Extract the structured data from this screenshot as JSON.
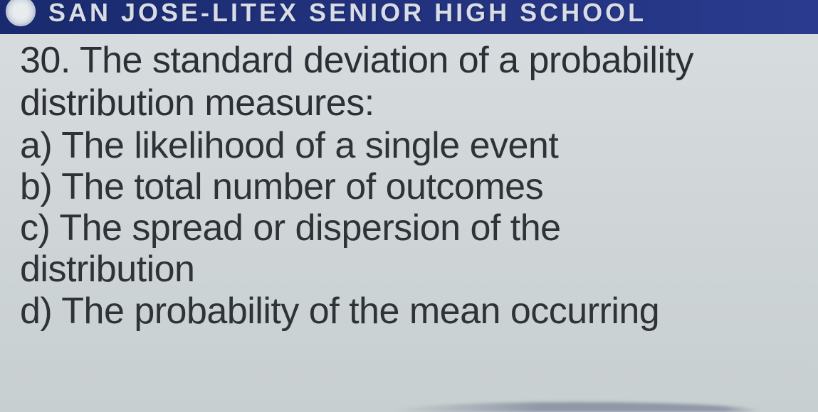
{
  "header": {
    "school_name_partial": "SAN JOSE-LITEX SENIOR HIGH SCHOOL",
    "logo_bg": "#e8ecef",
    "bar_color": "#1a2a6e",
    "text_color": "#d8dce5"
  },
  "question": {
    "number": "30.",
    "text_line1": "The standard deviation of a probability",
    "text_line2": "distribution measures:",
    "options": {
      "a": {
        "label": "a)",
        "text": "The likelihood of a single event"
      },
      "b": {
        "label": "b)",
        "text": "The total number of outcomes"
      },
      "c": {
        "label": "c)",
        "text_line1": "The spread or dispersion of the",
        "text_line2": "distribution"
      },
      "d": {
        "label": "d)",
        "text": "The probability of the mean occurring"
      }
    }
  },
  "colors": {
    "background_top": "#d8dde0",
    "background_bottom": "#c8cfd0",
    "text": "#2a2e33"
  }
}
